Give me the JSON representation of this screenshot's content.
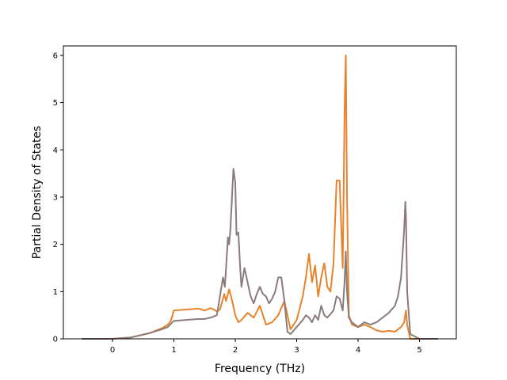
{
  "chart_data": {
    "type": "line",
    "title": "",
    "xlabel": "Frequency (THz)",
    "ylabel": "Partial Density of States",
    "xlim": [
      -0.8,
      5.6
    ],
    "ylim": [
      0,
      6.2
    ],
    "xticks": [
      0,
      1,
      2,
      3,
      4,
      5
    ],
    "yticks": [
      0,
      1,
      2,
      3,
      4,
      5,
      6
    ],
    "grid": false,
    "legend": "none",
    "series": [
      {
        "color": "#e8822a",
        "x": [
          -0.5,
          0.0,
          0.3,
          0.6,
          0.8,
          0.9,
          0.95,
          1.0,
          1.2,
          1.4,
          1.5,
          1.6,
          1.65,
          1.7,
          1.75,
          1.8,
          1.82,
          1.85,
          1.9,
          1.95,
          2.0,
          2.05,
          2.1,
          2.2,
          2.3,
          2.4,
          2.5,
          2.6,
          2.7,
          2.8,
          2.9,
          3.0,
          3.1,
          3.15,
          3.2,
          3.25,
          3.3,
          3.35,
          3.4,
          3.45,
          3.5,
          3.55,
          3.6,
          3.65,
          3.7,
          3.75,
          3.78,
          3.8,
          3.82,
          3.85,
          3.9,
          4.0,
          4.1,
          4.2,
          4.3,
          4.4,
          4.5,
          4.6,
          4.7,
          4.75,
          4.78,
          4.8,
          4.85,
          5.0,
          5.3
        ],
        "y": [
          0.0,
          0.0,
          0.03,
          0.12,
          0.22,
          0.3,
          0.38,
          0.6,
          0.62,
          0.64,
          0.6,
          0.65,
          0.62,
          0.58,
          0.62,
          0.85,
          0.95,
          0.8,
          1.05,
          0.8,
          0.5,
          0.35,
          0.4,
          0.55,
          0.45,
          0.7,
          0.3,
          0.35,
          0.5,
          0.8,
          0.2,
          0.4,
          0.9,
          1.3,
          1.8,
          1.2,
          1.55,
          0.9,
          1.3,
          1.6,
          1.1,
          1.0,
          1.6,
          3.35,
          3.35,
          1.5,
          4.8,
          6.0,
          3.0,
          0.5,
          0.3,
          0.25,
          0.3,
          0.25,
          0.18,
          0.15,
          0.17,
          0.15,
          0.25,
          0.35,
          0.6,
          0.3,
          0.0,
          0.0,
          0.0
        ]
      },
      {
        "color": "#8b7b7b",
        "x": [
          -0.5,
          0.0,
          0.3,
          0.6,
          0.8,
          0.9,
          1.0,
          1.2,
          1.4,
          1.5,
          1.6,
          1.7,
          1.75,
          1.8,
          1.83,
          1.85,
          1.88,
          1.9,
          1.92,
          1.95,
          1.97,
          2.0,
          2.02,
          2.05,
          2.08,
          2.1,
          2.15,
          2.2,
          2.25,
          2.3,
          2.35,
          2.4,
          2.45,
          2.5,
          2.55,
          2.6,
          2.65,
          2.7,
          2.75,
          2.8,
          2.85,
          2.9,
          3.0,
          3.1,
          3.15,
          3.2,
          3.25,
          3.3,
          3.35,
          3.4,
          3.45,
          3.5,
          3.6,
          3.65,
          3.7,
          3.75,
          3.78,
          3.8,
          3.82,
          3.85,
          3.9,
          4.0,
          4.1,
          4.2,
          4.3,
          4.4,
          4.5,
          4.6,
          4.65,
          4.7,
          4.72,
          4.75,
          4.77,
          4.78,
          4.8,
          4.85,
          5.0,
          5.3
        ],
        "y": [
          0.0,
          0.0,
          0.03,
          0.12,
          0.2,
          0.25,
          0.38,
          0.4,
          0.42,
          0.42,
          0.45,
          0.5,
          0.9,
          1.3,
          1.1,
          1.5,
          2.15,
          2.0,
          2.3,
          3.1,
          3.6,
          3.3,
          2.2,
          2.25,
          1.5,
          1.1,
          1.5,
          1.2,
          0.9,
          0.75,
          0.95,
          1.1,
          0.95,
          0.9,
          0.75,
          0.85,
          1.0,
          1.3,
          1.3,
          0.8,
          0.15,
          0.1,
          0.25,
          0.4,
          0.5,
          0.45,
          0.35,
          0.5,
          0.4,
          0.7,
          0.5,
          0.45,
          0.6,
          0.9,
          0.85,
          0.6,
          1.2,
          1.85,
          1.0,
          0.45,
          0.35,
          0.25,
          0.35,
          0.3,
          0.35,
          0.45,
          0.55,
          0.7,
          0.9,
          1.3,
          1.7,
          2.3,
          2.9,
          2.6,
          1.0,
          0.1,
          0.0,
          0.0
        ]
      }
    ]
  }
}
